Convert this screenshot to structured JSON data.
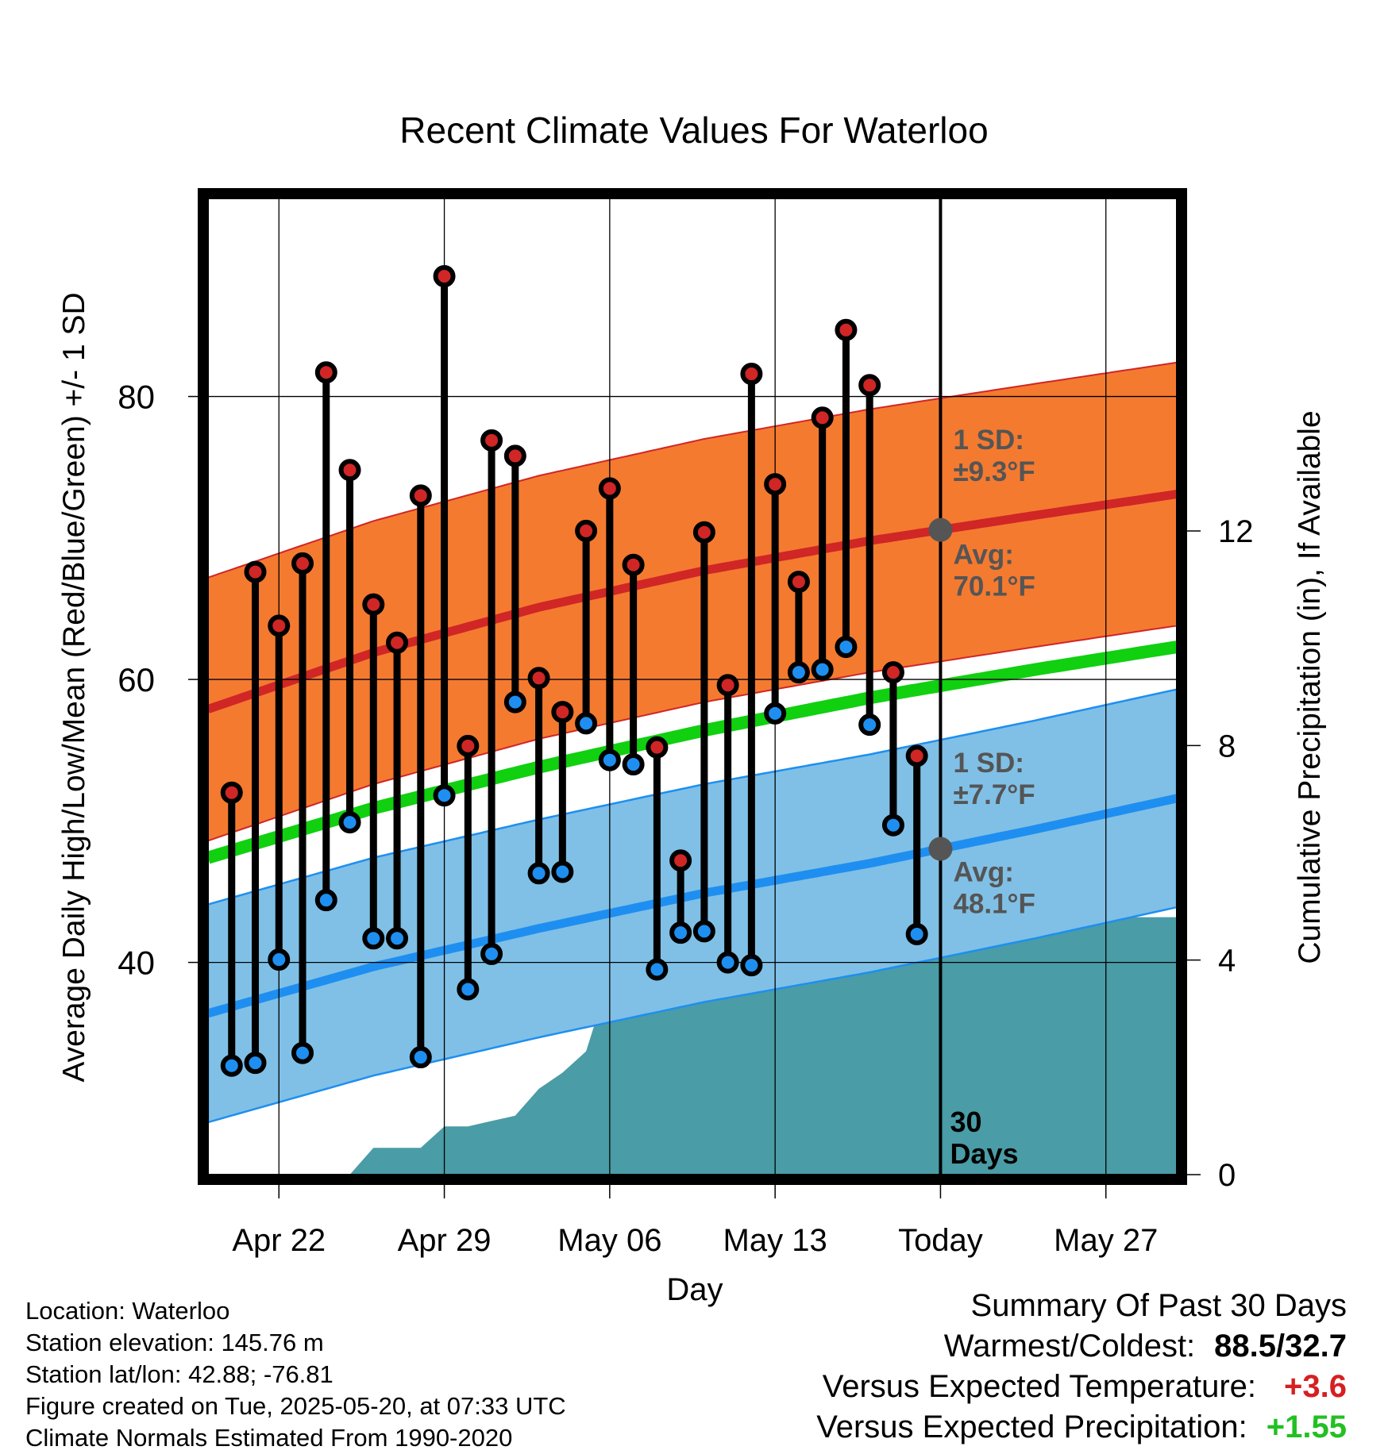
{
  "chart_data": {
    "type": "line",
    "title": "Recent Climate Values For Waterloo",
    "xlabel": "Day",
    "ylabel_left": "Average Daily High/Low/Mean (Red/Blue/Green) +/- 1 SD",
    "ylabel_right": "Cumulative Precipitation (in), If Available",
    "x_range": [
      "2025-04-19",
      "2025-05-30"
    ],
    "y_left_range": [
      25,
      94
    ],
    "y_left_ticks": [
      40,
      60,
      80
    ],
    "y_left_tick_labels": [
      "40",
      "60",
      "80"
    ],
    "y_right_range": [
      0,
      18.2
    ],
    "y_right_ticks": [
      0,
      4,
      8,
      12
    ],
    "y_right_tick_labels": [
      "0",
      "4",
      "8",
      "12"
    ],
    "x_ticks": [
      "2025-04-22",
      "2025-04-29",
      "2025-05-06",
      "2025-05-13",
      "2025-05-20",
      "2025-05-27"
    ],
    "x_tick_labels": [
      "Apr 22",
      "Apr 29",
      "May 06",
      "May 13",
      "Today",
      "May 27"
    ],
    "today": "2025-05-20",
    "today_label": "30\nDays",
    "normals": {
      "dates": [
        "2025-04-19",
        "2025-04-26",
        "2025-05-03",
        "2025-05-10",
        "2025-05-17",
        "2025-05-24",
        "2025-05-30"
      ],
      "avg_high": [
        57.9,
        61.9,
        65.1,
        67.7,
        69.8,
        71.6,
        73.1
      ],
      "high_sd": 9.3,
      "avg_low": [
        36.4,
        39.7,
        42.4,
        44.9,
        47.0,
        49.4,
        51.6
      ],
      "low_sd": 7.7,
      "avg_mean": [
        47.4,
        50.9,
        53.8,
        56.4,
        58.7,
        60.7,
        62.3
      ]
    },
    "band_labels": {
      "high_sd": "1 SD:\n±9.3°F",
      "high_avg": "Avg:\n70.1°F",
      "low_sd": "1 SD:\n±7.7°F",
      "low_avg": "Avg:\n48.1°F"
    },
    "observations": {
      "dates": [
        "2025-04-20",
        "2025-04-21",
        "2025-04-22",
        "2025-04-23",
        "2025-04-24",
        "2025-04-25",
        "2025-04-26",
        "2025-04-27",
        "2025-04-28",
        "2025-04-29",
        "2025-04-30",
        "2025-05-01",
        "2025-05-02",
        "2025-05-03",
        "2025-05-04",
        "2025-05-05",
        "2025-05-06",
        "2025-05-07",
        "2025-05-08",
        "2025-05-09",
        "2025-05-10",
        "2025-05-11",
        "2025-05-12",
        "2025-05-13",
        "2025-05-14",
        "2025-05-15",
        "2025-05-16",
        "2025-05-17",
        "2025-05-18",
        "2025-05-19"
      ],
      "highs": [
        52.0,
        67.6,
        63.8,
        68.2,
        81.7,
        74.8,
        65.3,
        62.6,
        73.0,
        88.5,
        55.3,
        76.9,
        75.8,
        60.1,
        57.7,
        70.5,
        73.5,
        68.1,
        55.2,
        47.2,
        70.4,
        59.6,
        81.6,
        73.8,
        66.9,
        78.5,
        84.7,
        80.8,
        60.5,
        54.6
      ],
      "lows": [
        32.7,
        32.9,
        40.2,
        33.6,
        44.4,
        49.9,
        41.7,
        41.7,
        33.3,
        51.8,
        38.1,
        40.6,
        58.4,
        46.3,
        46.4,
        56.9,
        54.3,
        54.0,
        39.5,
        42.1,
        42.2,
        40.0,
        39.8,
        57.6,
        60.5,
        60.7,
        62.3,
        56.8,
        49.7,
        42.0
      ]
    },
    "cumulative_precip": {
      "dates": [
        "2025-04-19",
        "2025-04-25",
        "2025-04-26",
        "2025-04-27",
        "2025-04-28",
        "2025-04-29",
        "2025-04-30",
        "2025-05-01",
        "2025-05-02",
        "2025-05-03",
        "2025-05-04",
        "2025-05-05",
        "2025-05-06",
        "2025-05-07",
        "2025-05-08",
        "2025-05-13",
        "2025-05-14",
        "2025-05-15",
        "2025-05-16",
        "2025-05-17",
        "2025-05-30"
      ],
      "values": [
        0,
        0,
        0.5,
        0.5,
        0.5,
        0.9,
        0.9,
        1.0,
        1.1,
        1.6,
        1.9,
        2.3,
        3.7,
        4.1,
        4.1,
        4.1,
        4.1,
        4.1,
        4.4,
        4.8,
        4.8
      ]
    },
    "colors": {
      "high": "#d02626",
      "high_band": "#f47a30",
      "low": "#1e8ff0",
      "low_band": "#80c0e6",
      "mean": "#10d010",
      "precip": "#4a9ca6",
      "annotation": "#555555"
    },
    "grid": true
  },
  "info": {
    "location": "Location: Waterloo",
    "elevation": "Station elevation: 145.76 m",
    "latlon": "Station lat/lon: 42.88; -76.81",
    "created": "Figure created on Tue, 2025-05-20, at 07:33 UTC",
    "normals_note": "Climate Normals Estimated From 1990-2020"
  },
  "summary": {
    "title": "Summary Of Past 30 Days",
    "warm_label": "Warmest/Coldest:",
    "warm_value": "88.5/32.7",
    "temp_label": "Versus Expected Temperature:",
    "temp_value": "+3.6",
    "precip_label": "Versus Expected Precipitation:",
    "precip_value": "+1.55"
  }
}
